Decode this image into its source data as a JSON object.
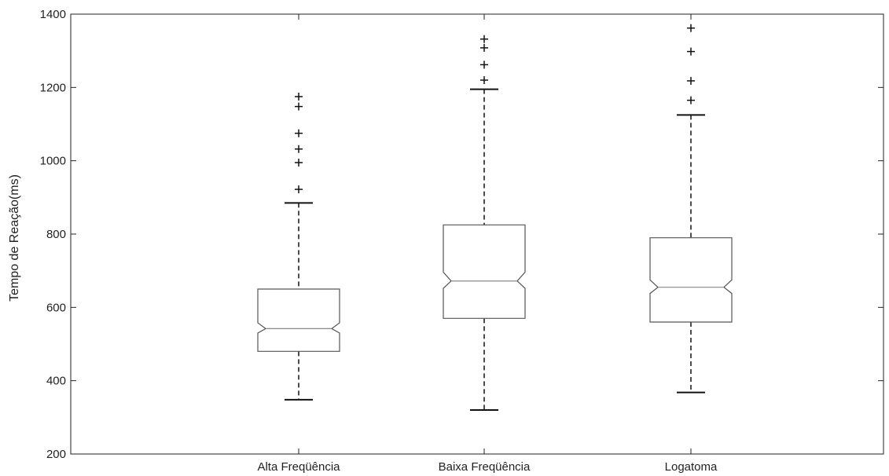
{
  "chart_data": {
    "type": "boxplot",
    "title": "",
    "xlabel": "",
    "ylabel": "Tempo de Reação(ms)",
    "ylim": [
      200,
      1400
    ],
    "yticks": [
      200,
      400,
      600,
      800,
      1000,
      1200,
      1400
    ],
    "categories": [
      "Alta Freqüência",
      "Baixa Freqüência",
      "Logatoma"
    ],
    "notched": true,
    "grid": false,
    "boxes": [
      {
        "category": "Alta Freqüência",
        "whisker_low": 348,
        "q1": 480,
        "median": 542,
        "q3": 650,
        "whisker_high": 885,
        "notch_low": 530,
        "notch_high": 558,
        "outliers": [
          922,
          995,
          1032,
          1075,
          1148,
          1175
        ]
      },
      {
        "category": "Baixa Freqüência",
        "whisker_low": 320,
        "q1": 570,
        "median": 672,
        "q3": 825,
        "whisker_high": 1195,
        "notch_low": 652,
        "notch_high": 696,
        "outliers": [
          1220,
          1262,
          1308,
          1332
        ]
      },
      {
        "category": "Logatoma",
        "whisker_low": 368,
        "q1": 560,
        "median": 655,
        "q3": 790,
        "whisker_high": 1125,
        "notch_low": 638,
        "notch_high": 675,
        "outliers": [
          1165,
          1218,
          1298,
          1362
        ]
      }
    ]
  }
}
